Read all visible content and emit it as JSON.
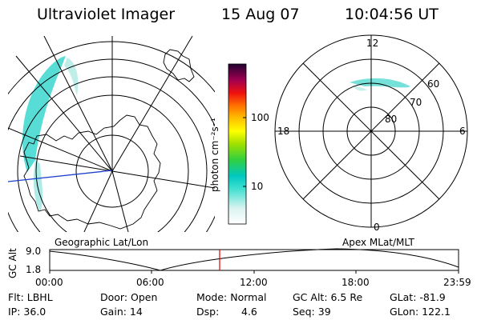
{
  "header": {
    "instrument": "Ultraviolet Imager",
    "date": "15 Aug 07",
    "time": "10:04:56 UT"
  },
  "colorbar": {
    "unit_label": "photon cm⁻²s⁻¹",
    "ticks": [
      "100",
      "10"
    ]
  },
  "left_map": {
    "caption": "Geographic Lat/Lon"
  },
  "right_map": {
    "caption": "Apex MLat/MLT",
    "mlt_labels": {
      "top": "12",
      "left": "18",
      "right": "6",
      "bottom": "0"
    },
    "lat_labels": [
      "60",
      "70",
      "80"
    ]
  },
  "orbit_plot": {
    "ylabel": "GC Alt",
    "yticks": [
      "9.0",
      "1.8"
    ],
    "xticks": [
      "00:00",
      "06:00",
      "12:00",
      "18:00",
      "23:59"
    ],
    "current_time_marker_color": "#dd0000"
  },
  "info": {
    "flt": "Flt: LBHL",
    "ip": "IP: 36.0",
    "door": "Door: Open",
    "gain": "Gain: 14",
    "mode": "Mode: Normal",
    "dsp_label": "Dsp:",
    "dsp_value": "4.6",
    "gc_alt": "GC Alt: 6.5 Re",
    "seq": "Seq: 39",
    "glat": "GLat: -81.9",
    "glon": "GLon: 122.1"
  }
}
